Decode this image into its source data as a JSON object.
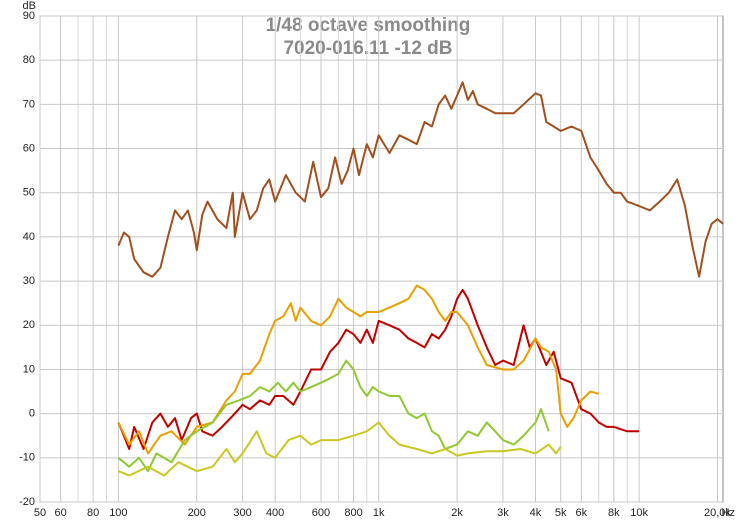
{
  "chart_data": {
    "type": "line",
    "title": "1/48 octave smoothing",
    "subtitle": "7020-016.11 -12 dB",
    "x_unit": "Hz",
    "y_unit": "dB",
    "xscale": "log",
    "grid": true,
    "xlim": [
      50,
      21000
    ],
    "ylim": [
      -20,
      90
    ],
    "xticks": [
      50,
      60,
      80,
      100,
      200,
      300,
      400,
      600,
      800,
      {
        "value": 1000,
        "label": "1k"
      },
      {
        "value": 2000,
        "label": "2k"
      },
      {
        "value": 3000,
        "label": "3k"
      },
      {
        "value": 4000,
        "label": "4k"
      },
      {
        "value": 5000,
        "label": "5k"
      },
      {
        "value": 6000,
        "label": "6k"
      },
      {
        "value": 8000,
        "label": "8k"
      },
      {
        "value": 10000,
        "label": "10k"
      },
      {
        "value": 20000,
        "label": "20,0k"
      }
    ],
    "xminor": [
      70,
      90,
      500,
      700,
      900,
      7000,
      9000
    ],
    "yticks": [
      -20,
      -10,
      0,
      10,
      20,
      30,
      40,
      50,
      60,
      70,
      80,
      90
    ],
    "series": [
      {
        "color": "#a0501e",
        "x": [
          100,
          105,
          110,
          115,
          125,
          135,
          145,
          155,
          165,
          175,
          185,
          195,
          200,
          210,
          220,
          240,
          260,
          275,
          280,
          300,
          320,
          340,
          360,
          380,
          400,
          440,
          480,
          500,
          520,
          560,
          600,
          640,
          680,
          720,
          760,
          800,
          840,
          900,
          950,
          1000,
          1100,
          1200,
          1300,
          1400,
          1500,
          1600,
          1700,
          1800,
          1900,
          2000,
          2100,
          2200,
          2300,
          2400,
          2600,
          2800,
          3000,
          3300,
          3600,
          4000,
          4200,
          4400,
          4700,
          5000,
          5500,
          6000,
          6500,
          7000,
          7500,
          8000,
          8500,
          9000,
          10000,
          11000,
          12000,
          13000,
          14000,
          15000,
          16000,
          17000,
          18000,
          19000,
          20000,
          21000
        ],
        "values": [
          38,
          41,
          40,
          35,
          32,
          31,
          33,
          40,
          46,
          44,
          46,
          41,
          37,
          45,
          48,
          44,
          42,
          50,
          40,
          50,
          44,
          46,
          51,
          53,
          48,
          54,
          50,
          49,
          48,
          57,
          49,
          51,
          58,
          52,
          55,
          60,
          54,
          61,
          58,
          63,
          59,
          63,
          62,
          61,
          66,
          65,
          70,
          72,
          69,
          72,
          75,
          71,
          73,
          70,
          69,
          68,
          68,
          68,
          70,
          72.5,
          72,
          66,
          65,
          64,
          65,
          64,
          58,
          55,
          52,
          50,
          50,
          48,
          47,
          46,
          48,
          50,
          53,
          47,
          38,
          31,
          39,
          43,
          44,
          43
        ]
      },
      {
        "color": "#c00000",
        "x": [
          100,
          105,
          110,
          115,
          125,
          135,
          145,
          155,
          165,
          175,
          190,
          200,
          210,
          230,
          250,
          280,
          300,
          320,
          350,
          380,
          400,
          430,
          470,
          500,
          550,
          600,
          650,
          700,
          750,
          800,
          850,
          900,
          950,
          1000,
          1100,
          1200,
          1300,
          1400,
          1500,
          1600,
          1700,
          1800,
          1900,
          2000,
          2100,
          2200,
          2400,
          2600,
          2800,
          3000,
          3300,
          3600,
          3800,
          4000,
          4400,
          4700,
          5000,
          5500,
          6000,
          6500,
          7000,
          7500,
          8000,
          9000,
          10000
        ],
        "values": [
          -2,
          -5,
          -8,
          -3,
          -8,
          -2,
          0,
          -3,
          -1,
          -6,
          -1,
          0,
          -4,
          -5,
          -3,
          0,
          2,
          1,
          3,
          2,
          4,
          4,
          2,
          5,
          10,
          10,
          14,
          16,
          19,
          18,
          16,
          19,
          16,
          21,
          20,
          19,
          17,
          16,
          15,
          18,
          17,
          19,
          22,
          26,
          28,
          26,
          20,
          15,
          11,
          12,
          11,
          20,
          15,
          17,
          11,
          14,
          8,
          7,
          1,
          0,
          -2,
          -3,
          -3,
          -4,
          -4
        ]
      },
      {
        "color": "#e8a000",
        "x": [
          100,
          110,
          120,
          130,
          145,
          160,
          180,
          200,
          230,
          260,
          280,
          300,
          320,
          350,
          380,
          400,
          430,
          460,
          480,
          500,
          550,
          600,
          650,
          700,
          750,
          800,
          850,
          900,
          1000,
          1100,
          1200,
          1300,
          1400,
          1500,
          1600,
          1700,
          1800,
          1900,
          2000,
          2200,
          2400,
          2600,
          3000,
          3300,
          3600,
          4000,
          4200,
          4500,
          4800,
          5000,
          5300,
          5600,
          6000,
          6500,
          7000
        ],
        "values": [
          -2,
          -7,
          -4,
          -9,
          -5,
          -4,
          -7,
          -3,
          -2,
          3,
          5,
          9,
          9,
          12,
          18,
          21,
          22,
          25,
          21,
          24,
          21,
          20,
          22,
          26,
          24,
          23,
          22,
          23,
          23,
          24,
          25,
          26,
          29,
          28,
          26,
          23,
          21,
          23,
          23,
          20,
          15,
          11,
          10,
          10,
          12,
          17,
          15,
          14,
          10,
          0,
          -3,
          -1,
          3,
          5,
          4.5
        ]
      },
      {
        "color": "#90c830",
        "x": [
          100,
          110,
          120,
          130,
          140,
          160,
          180,
          200,
          230,
          260,
          290,
          320,
          350,
          380,
          410,
          440,
          470,
          500,
          550,
          600,
          650,
          700,
          750,
          800,
          850,
          900,
          950,
          1000,
          1100,
          1200,
          1300,
          1400,
          1500,
          1600,
          1700,
          1800,
          2000,
          2200,
          2400,
          2600,
          2800,
          3000,
          3300,
          3600,
          4000,
          4200,
          4500
        ],
        "values": [
          -10,
          -12,
          -10,
          -13,
          -9,
          -11,
          -6,
          -4,
          -2,
          2,
          3,
          4,
          6,
          5,
          7,
          5,
          7,
          5,
          6,
          7,
          8,
          9,
          12,
          10,
          6,
          4,
          6,
          5,
          4,
          4,
          0,
          -1,
          0,
          -4,
          -5,
          -8,
          -7,
          -4,
          -5,
          -2,
          -4,
          -6,
          -7,
          -5,
          -2,
          1,
          -4
        ]
      },
      {
        "color": "#c8c820",
        "x": [
          100,
          110,
          130,
          150,
          170,
          200,
          230,
          260,
          280,
          300,
          340,
          370,
          400,
          450,
          500,
          550,
          600,
          700,
          800,
          900,
          1000,
          1100,
          1200,
          1400,
          1600,
          1800,
          2000,
          2200,
          2600,
          3000,
          3500,
          4000,
          4500,
          4800,
          5000
        ],
        "values": [
          -13,
          -14,
          -12,
          -14,
          -11,
          -13,
          -12,
          -8,
          -11,
          -9,
          -4,
          -9,
          -10,
          -6,
          -5,
          -7,
          -6,
          -6,
          -5,
          -4,
          -2,
          -5,
          -7,
          -8,
          -9,
          -8,
          -9.5,
          -9,
          -8.5,
          -8.5,
          -8,
          -9,
          -7,
          -9,
          -7.5
        ]
      }
    ]
  }
}
